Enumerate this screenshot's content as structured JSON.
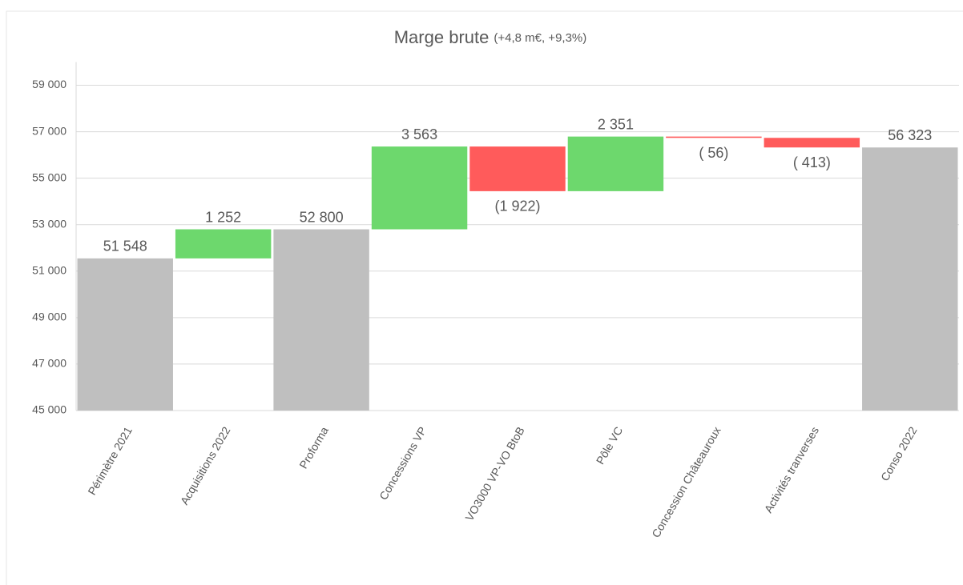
{
  "chart_data": {
    "type": "waterfall",
    "title": "Marge brute",
    "subtitle": "(+4,8 m€, +9,3%)",
    "categories": [
      "Périmètre 2021",
      "Acquisitions 2022",
      "Proforma",
      "Concessions VP",
      "VO3000 VP-VO BtoB",
      "Pôle VC",
      "Concession Châteauroux",
      "Activités tranverses",
      "Conso 2022"
    ],
    "values": [
      51548,
      1252,
      52800,
      3563,
      -1922,
      2351,
      -56,
      -413,
      56323
    ],
    "value_labels": [
      "51 548",
      "1 252",
      "52 800",
      "3 563",
      "(1 922)",
      "2 351",
      "( 56)",
      "( 413)",
      "56 323"
    ],
    "is_total": [
      true,
      false,
      true,
      false,
      false,
      false,
      false,
      false,
      true
    ],
    "colors": {
      "total": "#bfbfbf",
      "increase": "#6dd86d",
      "decrease": "#ff5b5b"
    },
    "ylim": [
      45000,
      60000
    ],
    "yticks": [
      {
        "value": 45000,
        "label": "45 000"
      },
      {
        "value": 47000,
        "label": "47 000"
      },
      {
        "value": 49000,
        "label": "49 000"
      },
      {
        "value": 51000,
        "label": "51 000"
      },
      {
        "value": 53000,
        "label": "53 000"
      },
      {
        "value": 55000,
        "label": "55 000"
      },
      {
        "value": 57000,
        "label": "57 000"
      },
      {
        "value": 59000,
        "label": "59 000"
      }
    ],
    "grid": true
  }
}
